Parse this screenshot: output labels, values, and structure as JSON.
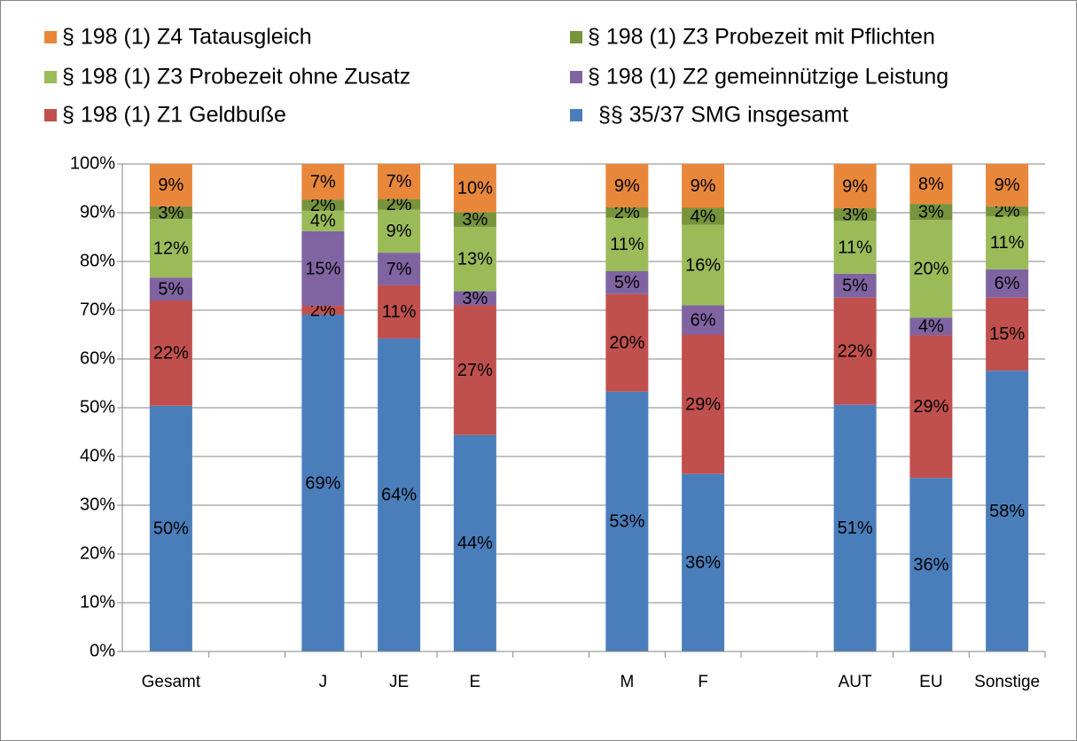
{
  "chart_data": {
    "type": "stacked_bar",
    "categories": [
      "Gesamt",
      null,
      "J",
      "JE",
      "E",
      null,
      "M",
      "F",
      null,
      "AUT",
      "EU",
      "Sonstige"
    ],
    "ylim": [
      0,
      100
    ],
    "yticks": [
      {
        "value": 0,
        "label": "0%"
      },
      {
        "value": 10,
        "label": "10%"
      },
      {
        "value": 20,
        "label": "20%"
      },
      {
        "value": 30,
        "label": "30%"
      },
      {
        "value": 40,
        "label": "40%"
      },
      {
        "value": 50,
        "label": "50%"
      },
      {
        "value": 60,
        "label": "60%"
      },
      {
        "value": 70,
        "label": "70%"
      },
      {
        "value": 80,
        "label": "80%"
      },
      {
        "value": 90,
        "label": "90%"
      },
      {
        "value": 100,
        "label": "100%"
      }
    ],
    "grid": true,
    "legend": "top",
    "series": [
      {
        "name": "§§ 35/37 SMG insgesamt",
        "color": "#4a7ebb",
        "values": [
          50.4,
          null,
          69.1,
          64.2,
          44.4,
          null,
          53.3,
          36.4,
          null,
          50.6,
          35.6,
          57.6
        ],
        "value_labels": [
          "50%",
          null,
          "69%",
          "64%",
          "44%",
          null,
          "53%",
          "36%",
          null,
          "51%",
          "36%",
          "58%"
        ]
      },
      {
        "name": "§ 198 (1) Z1 Geldbuße",
        "color": "#c0504d",
        "values": [
          21.6,
          null,
          1.8,
          10.9,
          26.6,
          null,
          20.0,
          28.6,
          null,
          22.0,
          29.3,
          15.0
        ],
        "value_labels": [
          "22%",
          null,
          "2%",
          "11%",
          "27%",
          null,
          "20%",
          "29%",
          null,
          "22%",
          "29%",
          "15%"
        ]
      },
      {
        "name": "§ 198 (1) Z2 gemeinnützige Leistung",
        "color": "#8064a2",
        "values": [
          4.7,
          null,
          15.3,
          6.7,
          2.9,
          null,
          4.7,
          6.0,
          null,
          4.9,
          3.6,
          5.8
        ],
        "value_labels": [
          "5%",
          null,
          "15%",
          "7%",
          "3%",
          null,
          "5%",
          "6%",
          null,
          "5%",
          "4%",
          "6%"
        ]
      },
      {
        "name": "§ 198 (1) Z3 Probezeit ohne Zusatz",
        "color": "#9bbb59",
        "values": [
          12.0,
          null,
          4.2,
          8.8,
          13.2,
          null,
          11.0,
          16.5,
          null,
          10.8,
          20.0,
          10.9
        ],
        "value_labels": [
          "12%",
          null,
          "4%",
          "9%",
          "13%",
          null,
          "11%",
          "16%",
          null,
          "11%",
          "20%",
          "11%"
        ]
      },
      {
        "name": "§ 198 (1) Z3 Probezeit mit Pflichten",
        "color": "#77933c",
        "values": [
          2.6,
          null,
          2.3,
          2.2,
          3.0,
          null,
          2.1,
          3.5,
          null,
          2.6,
          3.3,
          2.0
        ],
        "value_labels": [
          "3%",
          null,
          "2%",
          "2%",
          "3%",
          null,
          "2%",
          "4%",
          null,
          "3%",
          "3%",
          "2%"
        ]
      },
      {
        "name": "§ 198 (1) Z4 Tatausgleich",
        "color": "#e8873a",
        "values": [
          8.7,
          null,
          7.3,
          7.2,
          9.9,
          null,
          8.9,
          9.0,
          null,
          9.1,
          8.2,
          8.7
        ],
        "value_labels": [
          "9%",
          null,
          "7%",
          "7%",
          "10%",
          null,
          "9%",
          "9%",
          null,
          "9%",
          "8%",
          "9%"
        ]
      }
    ]
  }
}
